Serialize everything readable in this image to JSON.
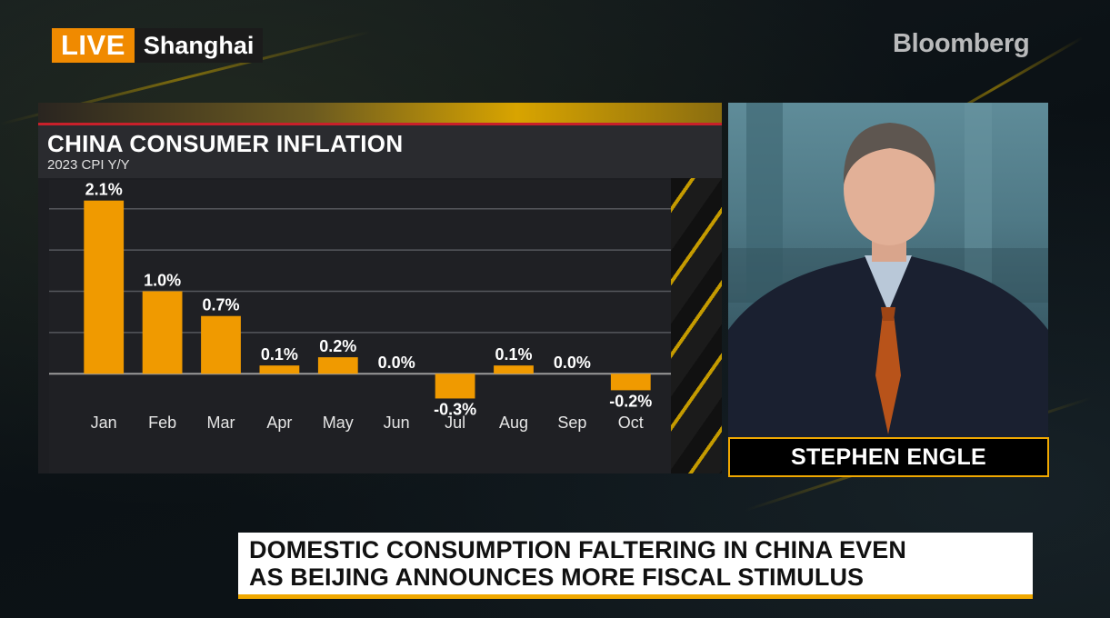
{
  "broadcast": {
    "live_label": "LIVE",
    "location": "Shanghai",
    "brand": "Bloomberg"
  },
  "chart_data": {
    "type": "bar",
    "title": "CHINA CONSUMER INFLATION",
    "subtitle": "2023 CPI Y/Y",
    "categories": [
      "Jan",
      "Feb",
      "Mar",
      "Apr",
      "May",
      "Jun",
      "Jul",
      "Aug",
      "Sep",
      "Oct"
    ],
    "values": [
      2.1,
      1.0,
      0.7,
      0.1,
      0.2,
      0.0,
      -0.3,
      0.1,
      0.0,
      -0.2
    ],
    "value_labels": [
      "2.1%",
      "1.0%",
      "0.7%",
      "0.1%",
      "0.2%",
      "0.0%",
      "-0.3%",
      "0.1%",
      "0.0%",
      "-0.2%"
    ],
    "ylim": [
      -0.35,
      2.35
    ],
    "grid": true,
    "bar_color": "#f09a00"
  },
  "anchor": {
    "name": "STEPHEN ENGLE"
  },
  "headline": {
    "line1": "DOMESTIC CONSUMPTION FALTERING IN CHINA EVEN",
    "line2": "AS BEIJING ANNOUNCES MORE FISCAL STIMULUS"
  },
  "colors": {
    "accent": "#f0a800",
    "live": "#f08a00"
  }
}
